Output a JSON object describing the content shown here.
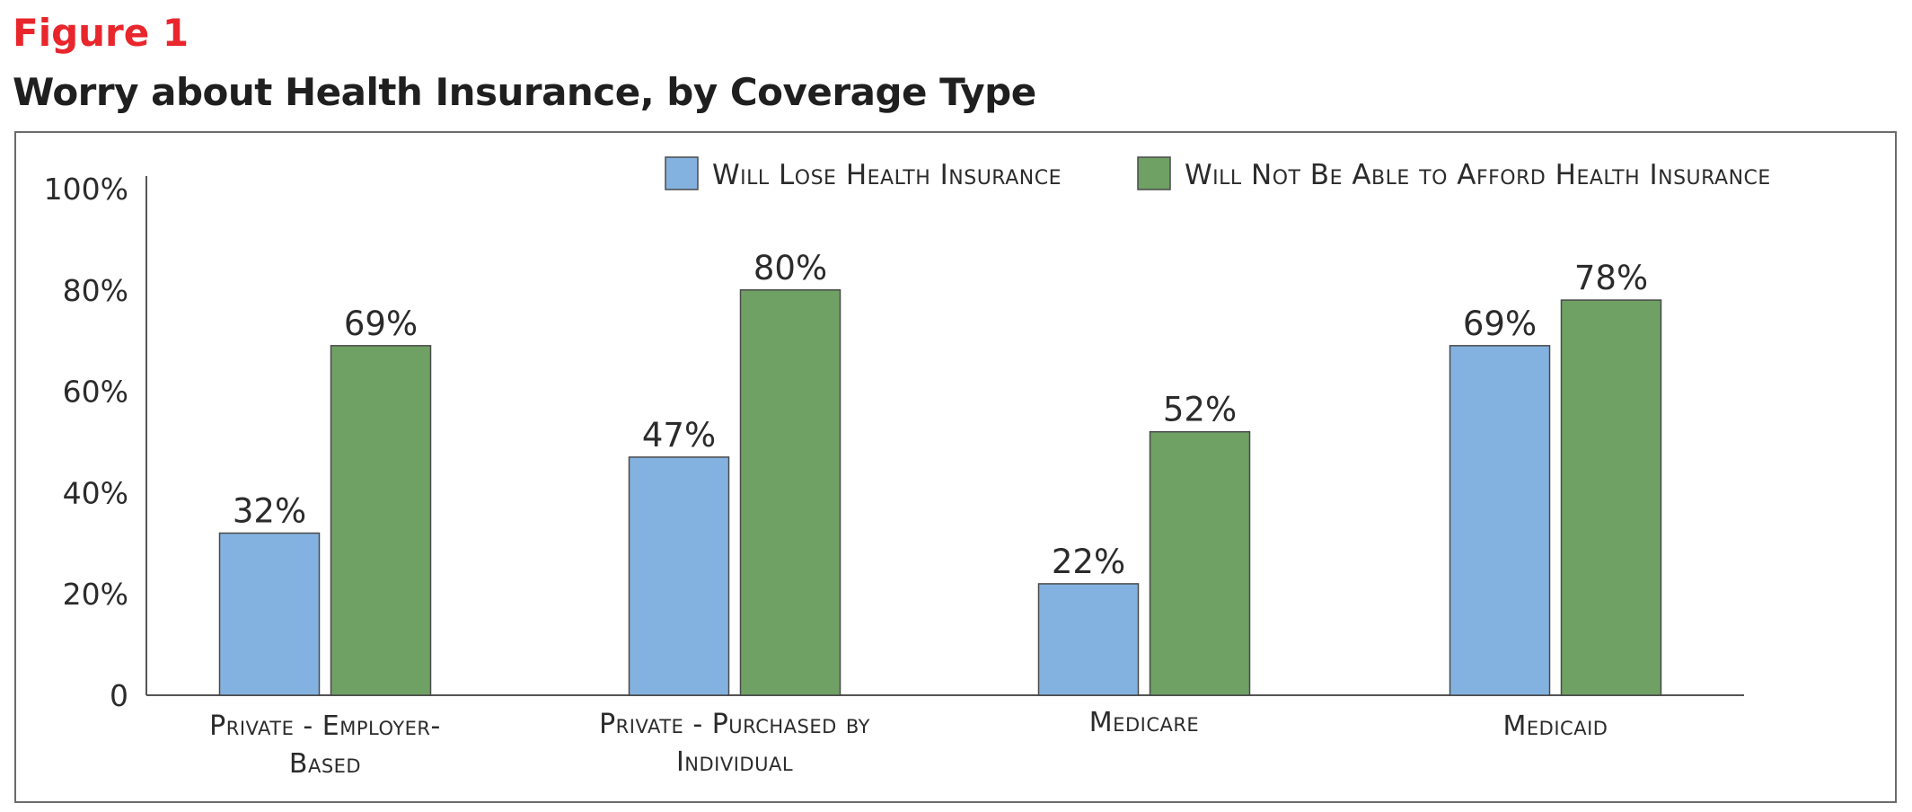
{
  "figure_label": "Figure 1",
  "figure_title": "Worry about Health Insurance, by Coverage Type",
  "chart_data": {
    "type": "bar",
    "title": "Worry about Health Insurance, by Coverage Type",
    "categories": [
      [
        "Private - Employer-",
        "Based"
      ],
      [
        "Private - Purchased by",
        "Individual"
      ],
      [
        "Medicare"
      ],
      [
        "Medicaid"
      ]
    ],
    "series": [
      {
        "name": "Will Lose Health Insurance",
        "values": [
          32,
          47,
          22,
          69
        ],
        "color": "#84b2e0"
      },
      {
        "name": "Will Not Be Able to Afford Health Insurance",
        "values": [
          69,
          80,
          52,
          78
        ],
        "color": "#6fa064"
      }
    ],
    "value_suffix": "%",
    "y_ticks": [
      "0",
      "20%",
      "40%",
      "60%",
      "80%",
      "100%"
    ],
    "ylim": [
      0,
      100
    ],
    "grid": false,
    "legend_position": "top-right",
    "xlabel": "",
    "ylabel": ""
  }
}
